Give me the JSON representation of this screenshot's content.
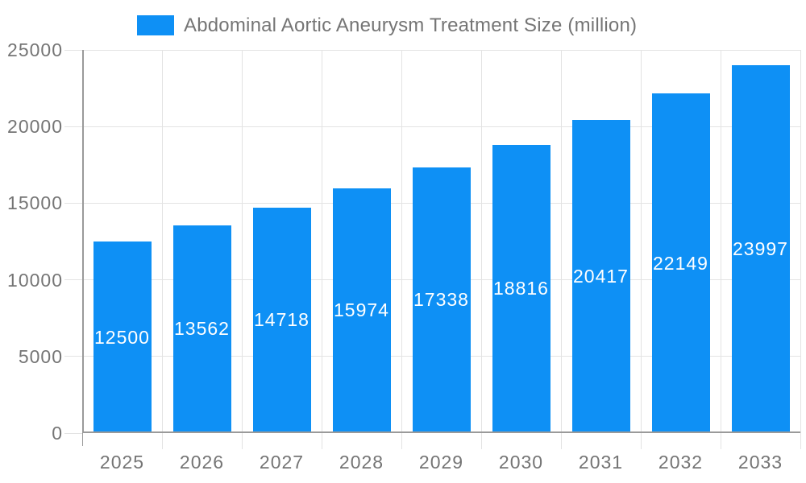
{
  "legend": {
    "label": "Abdominal Aortic Aneurysm Treatment Size (million)"
  },
  "chart_data": {
    "type": "bar",
    "title": "Abdominal Aortic Aneurysm Treatment Size (million)",
    "series": [
      {
        "name": "Abdominal Aortic Aneurysm Treatment Size (million)",
        "values": [
          12500,
          13562,
          14718,
          15974,
          17338,
          18816,
          20417,
          22149,
          23997
        ]
      }
    ],
    "categories": [
      "2025",
      "2026",
      "2027",
      "2028",
      "2029",
      "2030",
      "2031",
      "2032",
      "2033"
    ],
    "xlabel": "",
    "ylabel": "",
    "ylim": [
      0,
      25000
    ],
    "yticks": [
      0,
      5000,
      10000,
      15000,
      20000,
      25000
    ],
    "grid": true,
    "legend_position": "top",
    "value_labels": "centered-inside-bars"
  },
  "colors": {
    "bar": "#0e90f5",
    "grid": "#e3e3e3",
    "axis": "#9a9a9a",
    "tick_text": "#757575",
    "legend_text": "#757575",
    "value_text": "#ffffff",
    "background": "#ffffff"
  }
}
